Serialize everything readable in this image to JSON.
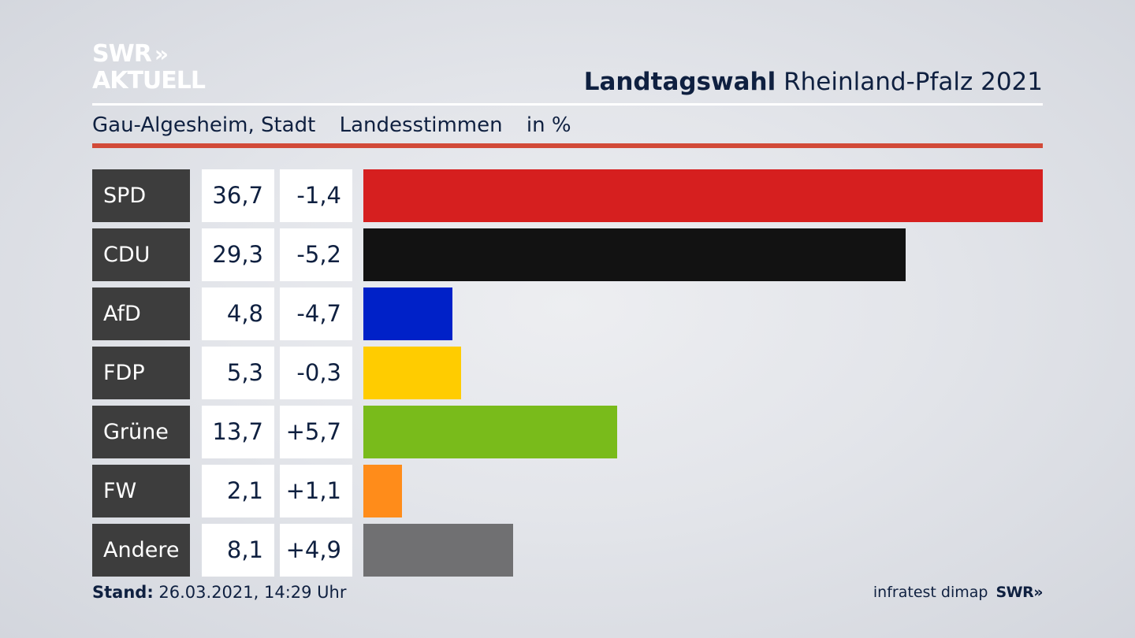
{
  "branding": {
    "logo_line1": "SWR",
    "logo_chevrons": "»",
    "logo_line2": "AKTUELL",
    "footer_brand": "SWR»",
    "source": "infratest dimap"
  },
  "header": {
    "title_bold": "Landtagswahl",
    "title_rest": " Rheinland-Pfalz 2021",
    "subtitle_place": "Gau-Algesheim, Stadt",
    "subtitle_type": "Landesstimmen",
    "subtitle_unit": "in %"
  },
  "footer": {
    "stand_label": "Stand:",
    "stand_value": " 26.03.2021, 14:29 Uhr"
  },
  "chart_data": {
    "type": "bar",
    "orientation": "horizontal",
    "unit": "in %",
    "categories": [
      "SPD",
      "CDU",
      "AfD",
      "FDP",
      "Grüne",
      "FW",
      "Andere"
    ],
    "values": [
      36.7,
      29.3,
      4.8,
      5.3,
      13.7,
      2.1,
      8.1
    ],
    "value_labels": [
      "36,7",
      "29,3",
      "4,8",
      "5,3",
      "13,7",
      "2,1",
      "8,1"
    ],
    "diff_labels": [
      "-1,4",
      "-5,2",
      "-4,7",
      "-0,3",
      "+5,7",
      "+1,1",
      "+4,9"
    ],
    "colors": [
      "#d61f1f",
      "#121212",
      "#0021c8",
      "#ffcc00",
      "#79bb1b",
      "#ff8c1a",
      "#707072"
    ],
    "grid": false,
    "legend": "none"
  }
}
